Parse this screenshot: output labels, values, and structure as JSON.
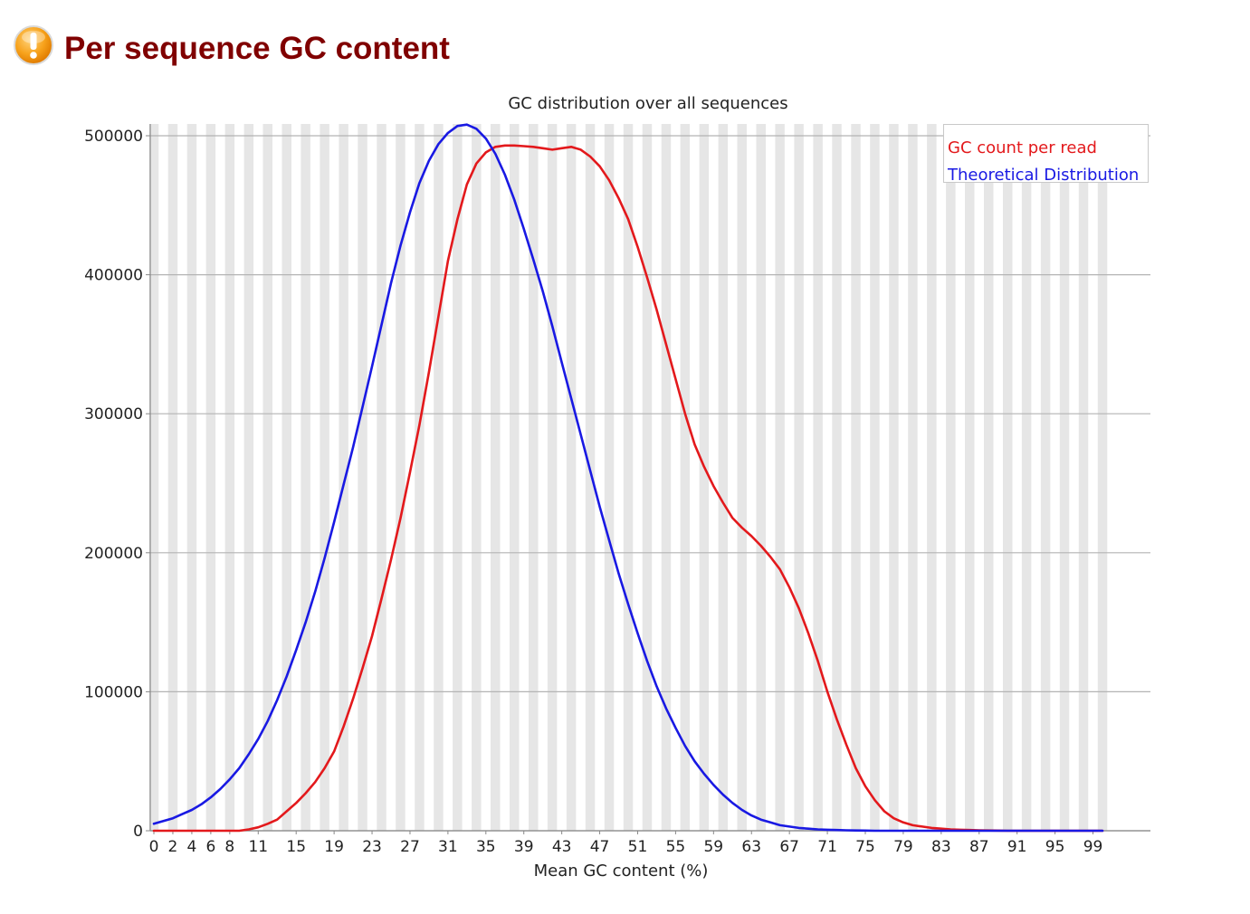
{
  "header": {
    "title": "Per sequence GC content",
    "status_icon": "warning-icon",
    "status_color": "#f5a623"
  },
  "chart_data": {
    "type": "line",
    "title": "GC distribution over all sequences",
    "xlabel": "Mean GC content (%)",
    "ylabel": "",
    "xlim": [
      0,
      100
    ],
    "ylim": [
      0,
      500000
    ],
    "x_tick_labels": [
      "0",
      "2",
      "4",
      "6",
      "8",
      "11",
      "15",
      "19",
      "23",
      "27",
      "31",
      "35",
      "39",
      "43",
      "47",
      "51",
      "55",
      "59",
      "63",
      "67",
      "71",
      "75",
      "79",
      "83",
      "87",
      "91",
      "95",
      "99"
    ],
    "y_ticks": [
      0,
      100000,
      200000,
      300000,
      400000,
      500000
    ],
    "y_tick_labels": [
      "0",
      "100000",
      "200000",
      "300000",
      "400000",
      "500000"
    ],
    "grid": true,
    "legend_position": "top-right",
    "series": [
      {
        "name": "GC count per read",
        "color": "#e3191c",
        "x": [
          0,
          1,
          2,
          3,
          4,
          5,
          6,
          7,
          8,
          9,
          10,
          11,
          12,
          13,
          14,
          15,
          16,
          17,
          18,
          19,
          20,
          21,
          22,
          23,
          24,
          25,
          26,
          27,
          28,
          29,
          30,
          31,
          32,
          33,
          34,
          35,
          36,
          37,
          38,
          39,
          40,
          41,
          42,
          43,
          44,
          45,
          46,
          47,
          48,
          49,
          50,
          51,
          52,
          53,
          54,
          55,
          56,
          57,
          58,
          59,
          60,
          61,
          62,
          63,
          64,
          65,
          66,
          67,
          68,
          69,
          70,
          71,
          72,
          73,
          74,
          75,
          76,
          77,
          78,
          79,
          80,
          81,
          82,
          83,
          84,
          85,
          86,
          87,
          88,
          89,
          90,
          91,
          92,
          93,
          94,
          95,
          96,
          97,
          98,
          99,
          100
        ],
        "values": [
          0,
          0,
          0,
          0,
          0,
          0,
          0,
          0,
          0,
          0,
          1000,
          2500,
          5000,
          8000,
          14000,
          20000,
          27000,
          35000,
          45000,
          57000,
          75000,
          95000,
          117000,
          140000,
          167000,
          195000,
          225000,
          258000,
          292000,
          330000,
          370000,
          410000,
          440000,
          465000,
          480000,
          488000,
          492000,
          493000,
          493000,
          492500,
          492000,
          491000,
          490000,
          491000,
          492000,
          490000,
          485000,
          478000,
          468000,
          455000,
          440000,
          420000,
          398000,
          375000,
          350000,
          325000,
          300000,
          278000,
          262000,
          248000,
          236000,
          225000,
          218000,
          212000,
          205000,
          197000,
          188000,
          175000,
          160000,
          142000,
          122000,
          100000,
          80000,
          62000,
          45000,
          32000,
          22000,
          14000,
          9000,
          6000,
          4000,
          3000,
          2000,
          1500,
          1000,
          700,
          500,
          300,
          200,
          100,
          0,
          0,
          0,
          0,
          0,
          0,
          0,
          0,
          0,
          0,
          0
        ]
      },
      {
        "name": "Theoretical Distribution",
        "color": "#1919e3",
        "x": [
          0,
          1,
          2,
          3,
          4,
          5,
          6,
          7,
          8,
          9,
          10,
          11,
          12,
          13,
          14,
          15,
          16,
          17,
          18,
          19,
          20,
          21,
          22,
          23,
          24,
          25,
          26,
          27,
          28,
          29,
          30,
          31,
          32,
          33,
          34,
          35,
          36,
          37,
          38,
          39,
          40,
          41,
          42,
          43,
          44,
          45,
          46,
          47,
          48,
          49,
          50,
          51,
          52,
          53,
          54,
          55,
          56,
          57,
          58,
          59,
          60,
          61,
          62,
          63,
          64,
          65,
          66,
          67,
          68,
          69,
          70,
          71,
          72,
          73,
          74,
          75,
          76,
          77,
          78,
          79,
          80,
          81,
          82,
          83,
          84,
          85,
          86,
          87,
          88,
          89,
          90,
          91,
          92,
          93,
          94,
          95,
          96,
          97,
          98,
          99,
          100
        ],
        "values": [
          5000,
          7000,
          9000,
          12000,
          15000,
          19000,
          24000,
          30000,
          37000,
          45000,
          55000,
          66000,
          79000,
          94000,
          111000,
          130000,
          150000,
          172000,
          196000,
          222000,
          249000,
          276000,
          305000,
          334000,
          364000,
          394000,
          421000,
          445000,
          466000,
          482000,
          494000,
          502000,
          507000,
          508000,
          505000,
          498000,
          487000,
          472000,
          454000,
          433000,
          411000,
          388000,
          363000,
          337000,
          311000,
          285000,
          259000,
          233000,
          209000,
          185000,
          163000,
          142000,
          122000,
          104000,
          88000,
          74000,
          61000,
          50000,
          41000,
          33000,
          26000,
          20000,
          15000,
          11000,
          8000,
          6000,
          4000,
          3000,
          2000,
          1500,
          1000,
          700,
          500,
          300,
          200,
          100,
          0,
          0,
          0,
          0,
          0,
          0,
          0,
          0,
          0,
          0,
          0,
          0,
          0,
          0,
          0,
          0,
          0,
          0,
          0,
          0,
          0,
          0,
          0,
          0,
          0
        ],
        "x_offset_note": ""
      }
    ]
  }
}
